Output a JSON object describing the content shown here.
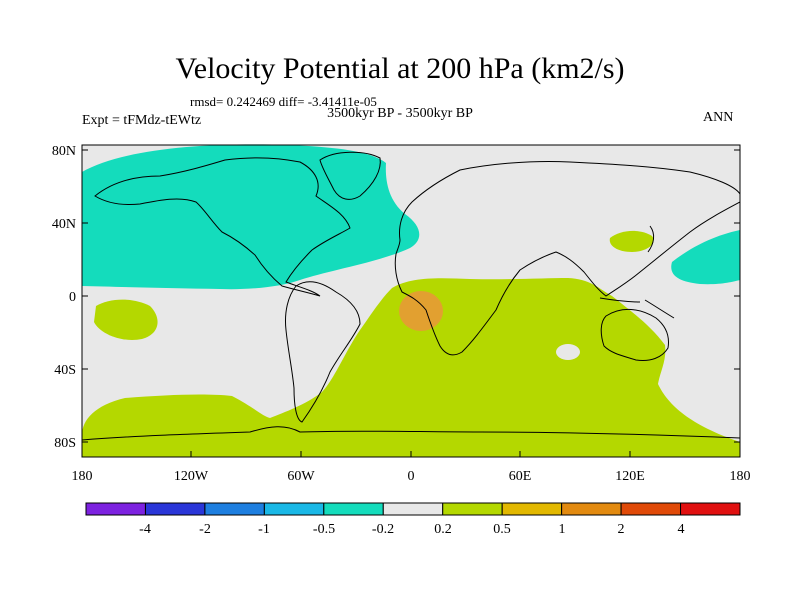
{
  "title": "Velocity Potential at 200 hPa (km2/s)",
  "stats": "rmsd= 0.242469 diff= -3.41411e-05",
  "subtitle": "3500kyr BP - 3500kyr BP",
  "experiment": "Expt = tFMdz-tEWtz",
  "season": "ANN",
  "y_axis_labels": [
    "80N",
    "40N",
    "0",
    "40S",
    "80S"
  ],
  "x_axis_labels": [
    "180",
    "120W",
    "60W",
    "0",
    "60E",
    "120E",
    "180"
  ],
  "colorbar": {
    "colors": [
      "#7d22e0",
      "#2a36d8",
      "#1e7fe0",
      "#1ab8e6",
      "#14dcbc",
      "#e8e8e8",
      "#b4d800",
      "#e2b800",
      "#e28a10",
      "#e04a08",
      "#e01010"
    ],
    "labels": [
      "-4",
      "-2",
      "-1",
      "-0.5",
      "-0.2",
      "0.2",
      "0.5",
      "1",
      "2",
      "4"
    ]
  },
  "field_colors": {
    "background": "#e8e8e8",
    "negative": "#14dcbc",
    "positive": "#b4d800",
    "strong_positive": "#e2a030"
  }
}
